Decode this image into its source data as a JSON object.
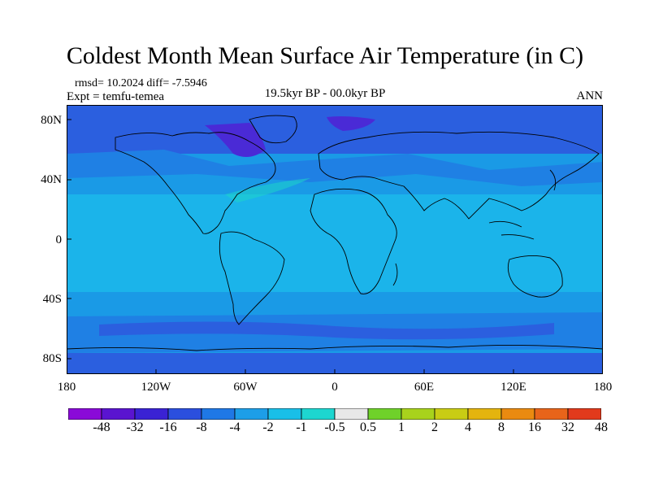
{
  "title": "Coldest Month Mean Surface Air Temperature (in C)",
  "stats": "rmsd= 10.2024 diff= -7.5946",
  "experiment": "Expt = temfu-temea",
  "period": "19.5kyr BP - 00.0kyr BP",
  "season": "ANN",
  "lat_labels": [
    "80N",
    "40N",
    "0",
    "40S",
    "80S"
  ],
  "lon_labels": [
    "180",
    "120W",
    "60W",
    "0",
    "60E",
    "120E",
    "180"
  ],
  "colorbar": {
    "colors": [
      "#8a0ad8",
      "#5a14d0",
      "#3a22d4",
      "#2b4fde",
      "#1f78e6",
      "#1d9ee8",
      "#19bfe8",
      "#1dd6d0",
      "#e8e8e8",
      "#6fd12a",
      "#a8d21c",
      "#c9cc14",
      "#e4b40e",
      "#ea8a10",
      "#e8641a",
      "#e23a1c"
    ],
    "labels": [
      "-48",
      "-32",
      "-16",
      "-8",
      "-4",
      "-2",
      "-1",
      "-0.5",
      "0.5",
      "1",
      "2",
      "4",
      "8",
      "16",
      "32",
      "48"
    ]
  },
  "map_colors": {
    "ocean": "#1a9ae6",
    "tropics": "#1bb4ea",
    "high_lat": "#2b5fdf",
    "extreme": "#4a2ad6",
    "warm_spot": "#1dd6c8",
    "coast": "#000000"
  }
}
